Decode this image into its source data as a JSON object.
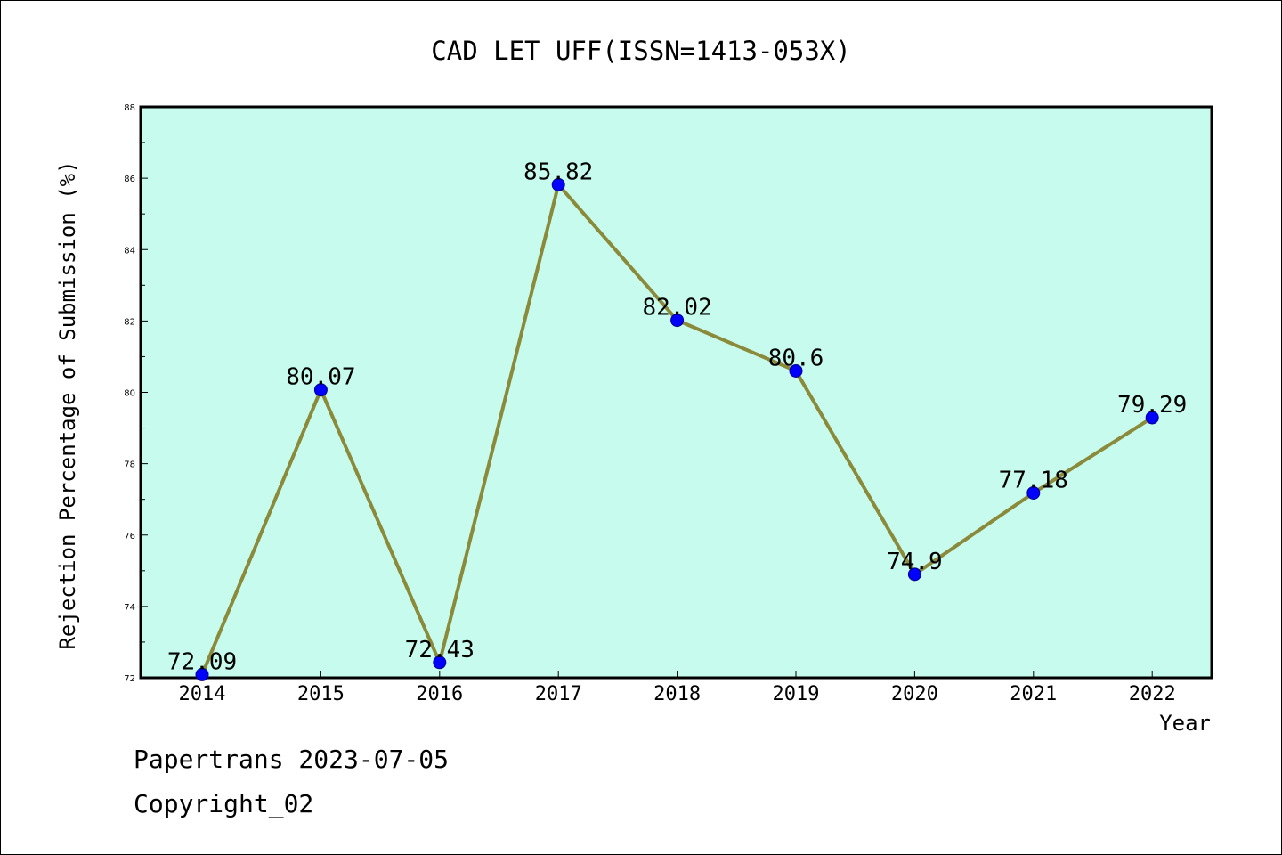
{
  "chart_data": {
    "type": "line",
    "title": "CAD LET UFF(ISSN=1413-053X)",
    "xlabel": "Year",
    "ylabel": "Rejection Percentage of Submission (%)",
    "categories": [
      "2014",
      "2015",
      "2016",
      "2017",
      "2018",
      "2019",
      "2020",
      "2021",
      "2022"
    ],
    "series": [
      {
        "values": [
          72.09,
          80.07,
          72.43,
          85.82,
          82.02,
          80.6,
          74.9,
          77.18,
          79.29
        ],
        "labels": [
          "72.09",
          "80.07",
          "72.43",
          "85.82",
          "82.02",
          "80.6",
          "74.9",
          "77.18",
          "79.29"
        ]
      }
    ],
    "ylim": [
      72,
      88
    ],
    "yticks": [
      "72",
      "74",
      "76",
      "78",
      "80",
      "82",
      "84",
      "86",
      "88"
    ],
    "grid": false,
    "colors": {
      "plot_background": "#c6fbee",
      "line": "#8b8a3a",
      "marker": "#0000ff",
      "marker_edge": "#00008b"
    }
  },
  "footer": {
    "line1": "Papertrans 2023-07-05",
    "line2": "Copyright_02"
  }
}
